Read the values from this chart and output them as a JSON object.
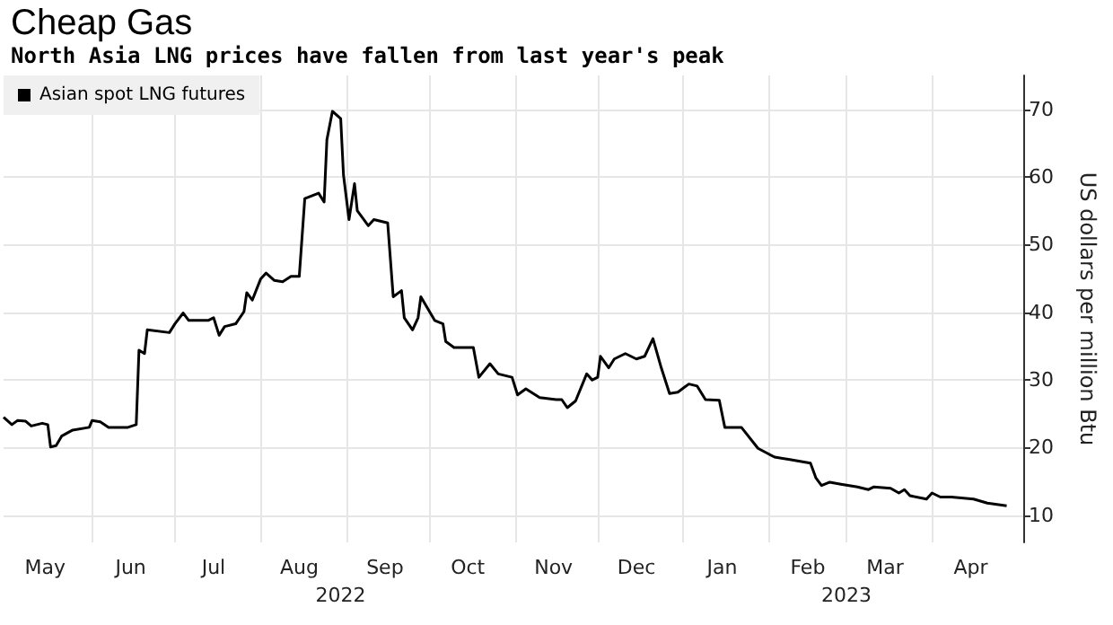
{
  "chart_data": {
    "type": "line",
    "title": "Cheap Gas",
    "subtitle": "North Asia LNG prices have fallen from last year's peak",
    "ylabel": "US dollars per million Btu",
    "x": [
      "2022-04-30",
      "2022-05-03",
      "2022-05-05",
      "2022-05-08",
      "2022-05-10",
      "2022-05-14",
      "2022-05-16",
      "2022-05-17",
      "2022-05-19",
      "2022-05-21",
      "2022-05-25",
      "2022-05-31",
      "2022-06-01",
      "2022-06-04",
      "2022-06-07",
      "2022-06-14",
      "2022-06-17",
      "2022-06-18",
      "2022-06-20",
      "2022-06-21",
      "2022-06-29",
      "2022-07-01",
      "2022-07-04",
      "2022-07-06",
      "2022-07-13",
      "2022-07-15",
      "2022-07-17",
      "2022-07-19",
      "2022-07-23",
      "2022-07-26",
      "2022-07-27",
      "2022-07-29",
      "2022-08-01",
      "2022-08-03",
      "2022-08-06",
      "2022-08-09",
      "2022-08-12",
      "2022-08-15",
      "2022-08-17",
      "2022-08-22",
      "2022-08-24",
      "2022-08-25",
      "2022-08-27",
      "2022-08-30",
      "2022-08-31",
      "2022-09-02",
      "2022-09-04",
      "2022-09-05",
      "2022-09-09",
      "2022-09-11",
      "2022-09-16",
      "2022-09-18",
      "2022-09-21",
      "2022-09-22",
      "2022-09-25",
      "2022-09-27",
      "2022-09-28",
      "2022-10-03",
      "2022-10-06",
      "2022-10-07",
      "2022-10-10",
      "2022-10-17",
      "2022-10-19",
      "2022-10-23",
      "2022-10-26",
      "2022-10-31",
      "2022-11-02",
      "2022-11-05",
      "2022-11-10",
      "2022-11-16",
      "2022-11-18",
      "2022-11-20",
      "2022-11-23",
      "2022-11-27",
      "2022-11-29",
      "2022-12-01",
      "2022-12-02",
      "2022-12-05",
      "2022-12-07",
      "2022-12-11",
      "2022-12-15",
      "2022-12-18",
      "2022-12-21",
      "2022-12-24",
      "2022-12-27",
      "2022-12-30",
      "2023-01-03",
      "2023-01-06",
      "2023-01-09",
      "2023-01-14",
      "2023-01-16",
      "2023-01-22",
      "2023-01-28",
      "2023-02-03",
      "2023-02-09",
      "2023-02-16",
      "2023-02-18",
      "2023-02-20",
      "2023-02-23",
      "2023-02-27",
      "2023-03-05",
      "2023-03-09",
      "2023-03-11",
      "2023-03-17",
      "2023-03-20",
      "2023-03-22",
      "2023-03-24",
      "2023-03-30",
      "2023-04-01",
      "2023-04-04",
      "2023-04-08",
      "2023-04-16",
      "2023-04-21",
      "2023-04-28"
    ],
    "series": [
      {
        "name": "Asian spot LNG futures",
        "color": "#000000",
        "values": [
          24.5,
          23.4,
          24.0,
          23.9,
          23.2,
          23.6,
          23.4,
          20.1,
          20.3,
          21.7,
          22.6,
          23.0,
          24.0,
          23.8,
          23.0,
          23.0,
          23.4,
          34.4,
          33.9,
          37.4,
          37.0,
          38.3,
          39.9,
          38.8,
          38.8,
          39.2,
          36.6,
          37.9,
          38.3,
          40.1,
          42.9,
          41.8,
          44.9,
          45.8,
          44.7,
          44.5,
          45.3,
          45.3,
          56.8,
          57.6,
          56.3,
          65.5,
          69.7,
          68.6,
          60.3,
          53.7,
          59.0,
          55.0,
          52.8,
          53.7,
          53.2,
          42.3,
          43.2,
          39.2,
          37.4,
          39.2,
          42.3,
          38.8,
          38.3,
          35.7,
          34.8,
          34.8,
          30.4,
          32.4,
          30.9,
          30.4,
          27.8,
          28.7,
          27.4,
          27.1,
          27.1,
          25.9,
          26.9,
          30.9,
          30.0,
          30.4,
          33.5,
          31.8,
          33.1,
          33.9,
          33.1,
          33.5,
          36.1,
          31.8,
          28.0,
          28.2,
          29.4,
          29.1,
          27.1,
          27.0,
          23.0,
          23.0,
          19.9,
          18.6,
          18.2,
          17.7,
          15.5,
          14.4,
          14.9,
          14.6,
          14.2,
          13.8,
          14.2,
          14.0,
          13.3,
          13.8,
          12.9,
          12.4,
          13.3,
          12.7,
          12.7,
          12.4,
          11.8,
          11.4
        ]
      }
    ],
    "xlim": [
      "2022-04-30",
      "2023-05-04"
    ],
    "xticks": [
      {
        "value": "2022-05-15",
        "label": "May"
      },
      {
        "value": "2022-06-01",
        "label": null
      },
      {
        "value": "2022-06-15",
        "label": "Jun"
      },
      {
        "value": "2022-07-01",
        "label": null
      },
      {
        "value": "2022-07-15",
        "label": "Jul"
      },
      {
        "value": "2022-08-01",
        "label": null
      },
      {
        "value": "2022-08-15",
        "label": "Aug"
      },
      {
        "value": "2022-09-01",
        "label": null
      },
      {
        "value": "2022-09-15",
        "label": "Sep"
      },
      {
        "value": "2022-10-01",
        "label": null
      },
      {
        "value": "2022-10-15",
        "label": "Oct"
      },
      {
        "value": "2022-11-01",
        "label": null
      },
      {
        "value": "2022-11-15",
        "label": "Nov"
      },
      {
        "value": "2022-12-01",
        "label": null
      },
      {
        "value": "2022-12-15",
        "label": "Dec"
      },
      {
        "value": "2023-01-01",
        "label": null
      },
      {
        "value": "2023-01-15",
        "label": "Jan"
      },
      {
        "value": "2023-02-01",
        "label": null
      },
      {
        "value": "2023-02-15",
        "label": "Feb"
      },
      {
        "value": "2023-03-01",
        "label": null
      },
      {
        "value": "2023-03-15",
        "label": "Mar"
      },
      {
        "value": "2023-04-01",
        "label": null
      },
      {
        "value": "2023-04-15",
        "label": "Apr"
      }
    ],
    "ylim": [
      6,
      75
    ],
    "yticks": [
      10,
      20,
      30,
      40,
      50,
      60,
      70
    ],
    "annotations": [
      "2022",
      "2023"
    ],
    "grid": true,
    "legend": "top left",
    "marker": "none",
    "line_style": "solid"
  }
}
